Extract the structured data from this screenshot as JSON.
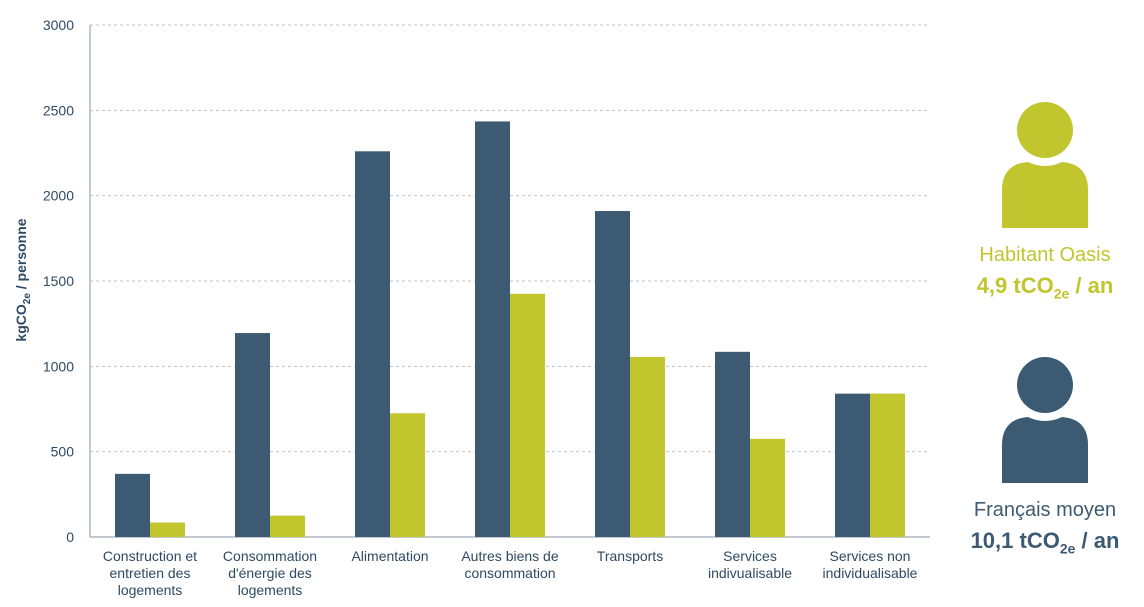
{
  "chart_data": {
    "type": "bar",
    "ylabel": "kgCO",
    "ylabel_sub": "2e",
    "ylabel_suffix": " / personne",
    "ylim": [
      0,
      3000
    ],
    "yticks": [
      0,
      500,
      1000,
      1500,
      2000,
      2500,
      3000
    ],
    "grid": true,
    "categories": [
      [
        "Construction et",
        "entretien des",
        "logements"
      ],
      [
        "Consommation",
        "d'énergie des",
        "logements"
      ],
      [
        "Alimentation"
      ],
      [
        "Autres biens de",
        "consommation"
      ],
      [
        "Transports"
      ],
      [
        "Services",
        "indivualisable"
      ],
      [
        "Services non",
        "individualisable"
      ]
    ],
    "series": [
      {
        "name": "Français moyen",
        "color": "#3d5a73",
        "values": [
          370,
          1195,
          2260,
          2435,
          1910,
          1085,
          840
        ]
      },
      {
        "name": "Habitant Oasis",
        "color": "#c1c52e",
        "values": [
          85,
          125,
          725,
          1425,
          1055,
          575,
          840
        ]
      }
    ]
  },
  "legend": {
    "oasis": {
      "name": "Habitant Oasis",
      "value": "4,9 tCO",
      "value_sub": "2e",
      "value_suffix": " / an",
      "color": "#c1c52e",
      "icon": "person-icon"
    },
    "french": {
      "name": "Français moyen",
      "value": "10,1 tCO",
      "value_sub": "2e",
      "value_suffix": " / an",
      "color": "#3d5a73",
      "icon": "person-icon"
    }
  }
}
